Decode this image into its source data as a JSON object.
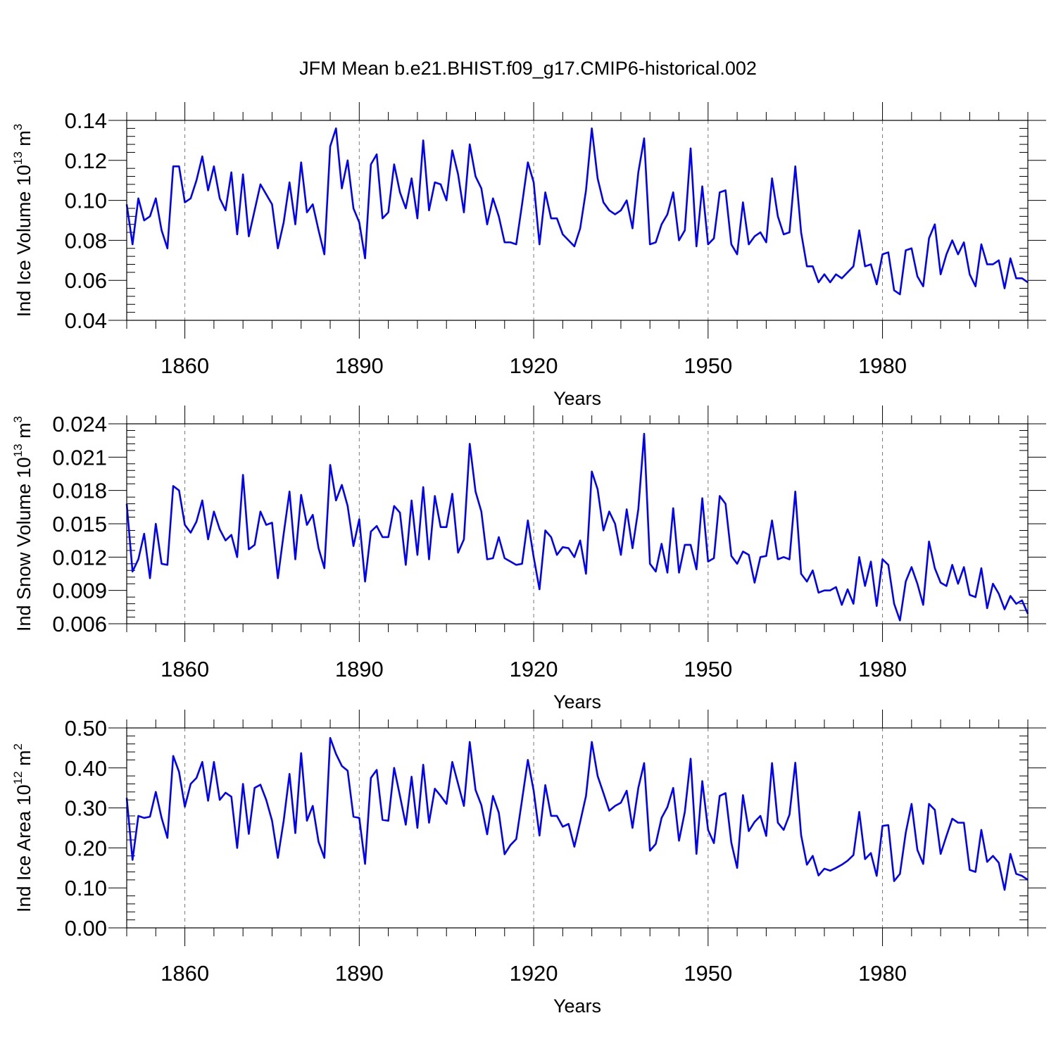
{
  "title": "JFM Mean b.e21.BHIST.f09_g17.CMIP6-historical.002",
  "line_color": "#0000ff",
  "chart_data": [
    {
      "type": "line",
      "id": "ice-volume",
      "title": "JFM Mean b.e21.BHIST.f09_g17.CMIP6-historical.002",
      "xlabel": "Years",
      "ylabel_main": "Ind Ice Volume 10",
      "ylabel_exp": "13",
      "ylabel_unit": " m",
      "ylabel_unit_exp": "3",
      "xlim": [
        1850,
        2005
      ],
      "ylim": [
        0.04,
        0.14
      ],
      "xticks": [
        1860,
        1890,
        1920,
        1950,
        1980
      ],
      "xtick_labels": [
        "1860",
        "1890",
        "1920",
        "1950",
        "1980"
      ],
      "yticks": [
        0.04,
        0.06,
        0.08,
        0.1,
        0.12,
        0.14
      ],
      "ytick_labels": [
        "0.04",
        "0.06",
        "0.08",
        "0.10",
        "0.12",
        "0.14"
      ],
      "x_start": 1850,
      "values": [
        0.098,
        0.078,
        0.101,
        0.09,
        0.092,
        0.101,
        0.085,
        0.076,
        0.117,
        0.117,
        0.099,
        0.101,
        0.11,
        0.122,
        0.105,
        0.117,
        0.101,
        0.095,
        0.114,
        0.083,
        0.113,
        0.082,
        0.095,
        0.108,
        0.103,
        0.098,
        0.076,
        0.089,
        0.109,
        0.088,
        0.119,
        0.094,
        0.098,
        0.085,
        0.073,
        0.127,
        0.136,
        0.106,
        0.12,
        0.096,
        0.089,
        0.071,
        0.118,
        0.123,
        0.091,
        0.094,
        0.118,
        0.104,
        0.096,
        0.111,
        0.091,
        0.13,
        0.095,
        0.109,
        0.108,
        0.1,
        0.125,
        0.113,
        0.094,
        0.128,
        0.112,
        0.106,
        0.088,
        0.101,
        0.092,
        0.079,
        0.079,
        0.078,
        0.098,
        0.119,
        0.109,
        0.078,
        0.104,
        0.091,
        0.091,
        0.083,
        0.08,
        0.077,
        0.086,
        0.105,
        0.136,
        0.111,
        0.099,
        0.095,
        0.093,
        0.095,
        0.1,
        0.086,
        0.114,
        0.131,
        0.078,
        0.079,
        0.088,
        0.093,
        0.104,
        0.08,
        0.085,
        0.126,
        0.077,
        0.107,
        0.078,
        0.081,
        0.104,
        0.105,
        0.078,
        0.073,
        0.099,
        0.078,
        0.082,
        0.084,
        0.079,
        0.111,
        0.092,
        0.083,
        0.084,
        0.117,
        0.084,
        0.067,
        0.067,
        0.059,
        0.063,
        0.059,
        0.063,
        0.061,
        0.064,
        0.067,
        0.085,
        0.067,
        0.068,
        0.058,
        0.073,
        0.074,
        0.055,
        0.053,
        0.075,
        0.076,
        0.062,
        0.057,
        0.081,
        0.088,
        0.063,
        0.073,
        0.08,
        0.073,
        0.079,
        0.063,
        0.057,
        0.078,
        0.068,
        0.068,
        0.07,
        0.056,
        0.071,
        0.061,
        0.061,
        0.059
      ]
    },
    {
      "type": "line",
      "id": "snow-volume",
      "xlabel": "Years",
      "ylabel_main": "Ind Snow Volume 10",
      "ylabel_exp": "13",
      "ylabel_unit": " m",
      "ylabel_unit_exp": "3",
      "xlim": [
        1850,
        2005
      ],
      "ylim": [
        0.006,
        0.024
      ],
      "xticks": [
        1860,
        1890,
        1920,
        1950,
        1980
      ],
      "xtick_labels": [
        "1860",
        "1890",
        "1920",
        "1950",
        "1980"
      ],
      "yticks": [
        0.006,
        0.009,
        0.012,
        0.015,
        0.018,
        0.021,
        0.024
      ],
      "ytick_labels": [
        "0.006",
        "0.009",
        "0.012",
        "0.015",
        "0.018",
        "0.021",
        "0.024"
      ],
      "x_start": 1850,
      "values": [
        0.0168,
        0.0107,
        0.0118,
        0.0141,
        0.0101,
        0.015,
        0.0114,
        0.0113,
        0.0184,
        0.018,
        0.0149,
        0.0142,
        0.0152,
        0.0171,
        0.0136,
        0.0161,
        0.0145,
        0.0135,
        0.014,
        0.012,
        0.0194,
        0.0127,
        0.0131,
        0.0161,
        0.0149,
        0.0151,
        0.0101,
        0.0141,
        0.0179,
        0.0118,
        0.0176,
        0.0149,
        0.0158,
        0.0128,
        0.011,
        0.0203,
        0.0171,
        0.0185,
        0.0166,
        0.013,
        0.0154,
        0.0098,
        0.0143,
        0.0148,
        0.0138,
        0.0138,
        0.0166,
        0.016,
        0.0113,
        0.0171,
        0.0122,
        0.0183,
        0.0118,
        0.0175,
        0.0147,
        0.0147,
        0.0177,
        0.0124,
        0.0136,
        0.0222,
        0.0179,
        0.0161,
        0.0118,
        0.0119,
        0.0138,
        0.0119,
        0.0116,
        0.0113,
        0.0114,
        0.0153,
        0.012,
        0.0091,
        0.0144,
        0.0138,
        0.0122,
        0.0129,
        0.0128,
        0.012,
        0.0135,
        0.0105,
        0.0197,
        0.0181,
        0.0144,
        0.0161,
        0.015,
        0.0122,
        0.0163,
        0.0128,
        0.0163,
        0.0231,
        0.0114,
        0.0107,
        0.0132,
        0.0106,
        0.0164,
        0.0106,
        0.0131,
        0.0131,
        0.0109,
        0.0173,
        0.0116,
        0.0119,
        0.0175,
        0.0168,
        0.0121,
        0.0114,
        0.0125,
        0.0122,
        0.0097,
        0.012,
        0.0121,
        0.0153,
        0.0118,
        0.012,
        0.0118,
        0.0179,
        0.0105,
        0.0098,
        0.0108,
        0.0088,
        0.009,
        0.009,
        0.0093,
        0.0077,
        0.0091,
        0.0078,
        0.012,
        0.0094,
        0.0116,
        0.0076,
        0.0118,
        0.0113,
        0.0078,
        0.0063,
        0.0098,
        0.0111,
        0.0096,
        0.0077,
        0.0134,
        0.011,
        0.0097,
        0.0094,
        0.0113,
        0.0096,
        0.0111,
        0.0086,
        0.0084,
        0.011,
        0.0074,
        0.0096,
        0.0087,
        0.0073,
        0.0085,
        0.0078,
        0.0081,
        0.0069
      ]
    },
    {
      "type": "line",
      "id": "ice-area",
      "xlabel": "Years",
      "ylabel_main": "Ind Ice Area 10",
      "ylabel_exp": "12",
      "ylabel_unit": " m",
      "ylabel_unit_exp": "2",
      "xlim": [
        1850,
        2005
      ],
      "ylim": [
        0.0,
        0.5
      ],
      "xticks": [
        1860,
        1890,
        1920,
        1950,
        1980
      ],
      "xtick_labels": [
        "1860",
        "1890",
        "1920",
        "1950",
        "1980"
      ],
      "yticks": [
        0.0,
        0.1,
        0.2,
        0.3,
        0.4,
        0.5
      ],
      "ytick_labels": [
        "0.00",
        "0.10",
        "0.20",
        "0.30",
        "0.40",
        "0.50"
      ],
      "x_start": 1850,
      "values": [
        0.325,
        0.17,
        0.28,
        0.275,
        0.278,
        0.34,
        0.275,
        0.225,
        0.43,
        0.39,
        0.303,
        0.36,
        0.375,
        0.415,
        0.318,
        0.415,
        0.32,
        0.338,
        0.328,
        0.2,
        0.36,
        0.235,
        0.35,
        0.358,
        0.32,
        0.268,
        0.175,
        0.268,
        0.385,
        0.237,
        0.437,
        0.268,
        0.305,
        0.215,
        0.175,
        0.475,
        0.435,
        0.405,
        0.393,
        0.278,
        0.275,
        0.16,
        0.375,
        0.395,
        0.27,
        0.268,
        0.4,
        0.33,
        0.258,
        0.378,
        0.25,
        0.408,
        0.263,
        0.348,
        0.33,
        0.31,
        0.415,
        0.36,
        0.305,
        0.465,
        0.345,
        0.307,
        0.234,
        0.33,
        0.288,
        0.184,
        0.207,
        0.222,
        0.32,
        0.42,
        0.343,
        0.231,
        0.357,
        0.28,
        0.28,
        0.253,
        0.26,
        0.203,
        0.265,
        0.33,
        0.465,
        0.38,
        0.337,
        0.293,
        0.305,
        0.313,
        0.343,
        0.25,
        0.35,
        0.412,
        0.193,
        0.21,
        0.275,
        0.302,
        0.35,
        0.218,
        0.29,
        0.423,
        0.185,
        0.367,
        0.245,
        0.212,
        0.33,
        0.337,
        0.213,
        0.15,
        0.332,
        0.242,
        0.265,
        0.28,
        0.23,
        0.412,
        0.263,
        0.245,
        0.283,
        0.413,
        0.232,
        0.158,
        0.18,
        0.131,
        0.148,
        0.143,
        0.15,
        0.158,
        0.168,
        0.182,
        0.29,
        0.172,
        0.187,
        0.13,
        0.255,
        0.257,
        0.117,
        0.135,
        0.238,
        0.31,
        0.195,
        0.16,
        0.31,
        0.295,
        0.185,
        0.23,
        0.273,
        0.263,
        0.263,
        0.145,
        0.14,
        0.245,
        0.165,
        0.18,
        0.163,
        0.095,
        0.185,
        0.135,
        0.13,
        0.12
      ]
    }
  ]
}
